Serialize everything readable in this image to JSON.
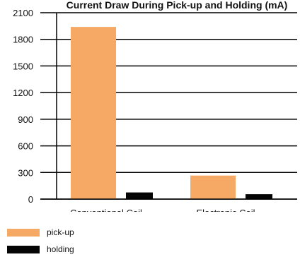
{
  "colors": {
    "pickup": "#f6a965",
    "holding": "#050505",
    "axis": "#000000",
    "grid": "#000000"
  },
  "chart_data": {
    "type": "bar",
    "title": "Current Draw During Pick-up and Holding (mA)",
    "categories": [
      "Conventional Coil",
      "Electronic Coil"
    ],
    "series": [
      {
        "name": "pick-up",
        "values": [
          1940,
          265
        ]
      },
      {
        "name": "holding",
        "values": [
          75,
          55
        ]
      }
    ],
    "yticks": [
      "0",
      "300",
      "600",
      "900",
      "1200",
      "1500",
      "1800",
      "2100"
    ],
    "ylim": [
      0,
      2100
    ],
    "grid": true,
    "legend": "bottom-left"
  }
}
